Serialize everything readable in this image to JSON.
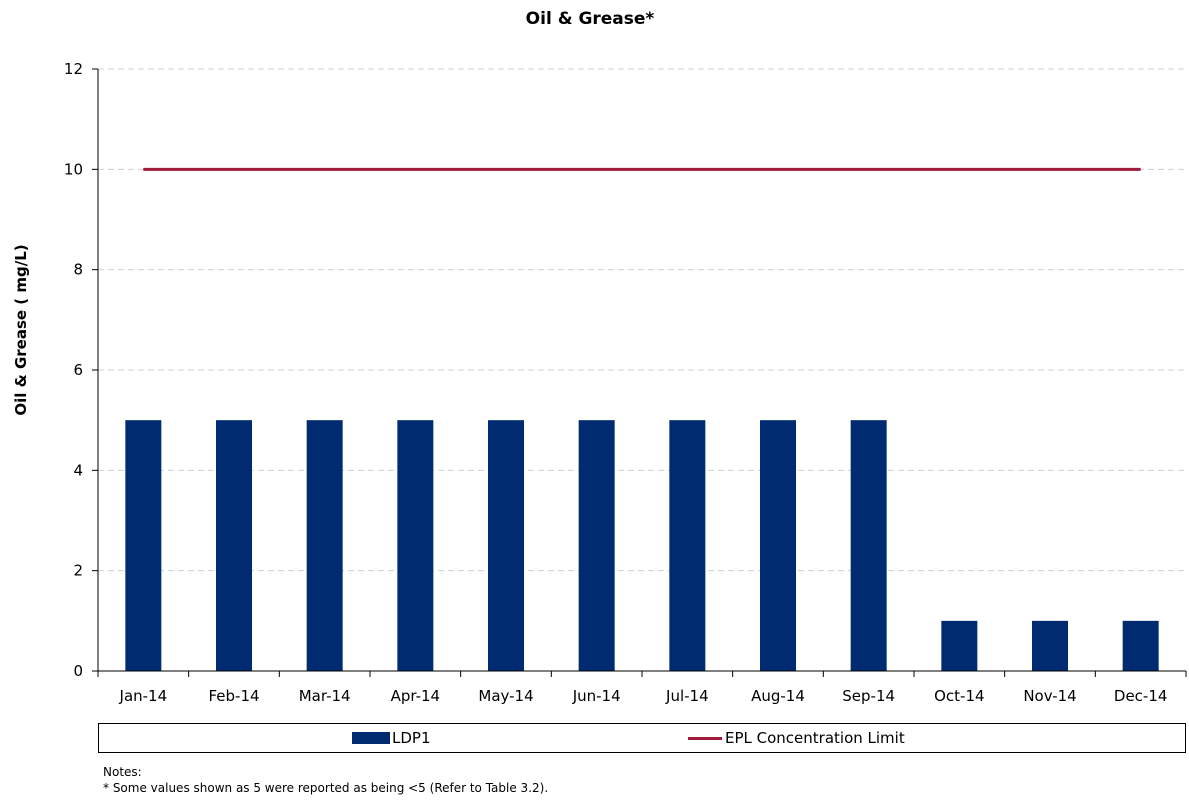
{
  "chart_data": {
    "type": "bar",
    "title": "Oil & Grease*",
    "xlabel": "",
    "ylabel": "Oil & Grease ( mg/L)",
    "categories": [
      "Jan-14",
      "Feb-14",
      "Mar-14",
      "Apr-14",
      "May-14",
      "Jun-14",
      "Jul-14",
      "Aug-14",
      "Sep-14",
      "Oct-14",
      "Nov-14",
      "Dec-14"
    ],
    "series": [
      {
        "name": "LDP1",
        "type": "bar",
        "color": "#002b70",
        "values": [
          5,
          5,
          5,
          5,
          5,
          5,
          5,
          5,
          5,
          1,
          1,
          1
        ]
      },
      {
        "name": "EPL Concentration Limit",
        "type": "line",
        "color": "#a01c3c",
        "values": [
          10,
          10,
          10,
          10,
          10,
          10,
          10,
          10,
          10,
          10,
          10,
          10
        ]
      }
    ],
    "ylim": [
      0,
      12
    ],
    "yticks": [
      0,
      2,
      4,
      6,
      8,
      10,
      12
    ],
    "grid": "horizontal dashed",
    "legend": "bottom"
  },
  "notes": {
    "heading": "Notes:",
    "line1": "* Some values shown as 5 were reported as being  <5 (Refer to Table 3.2)."
  }
}
